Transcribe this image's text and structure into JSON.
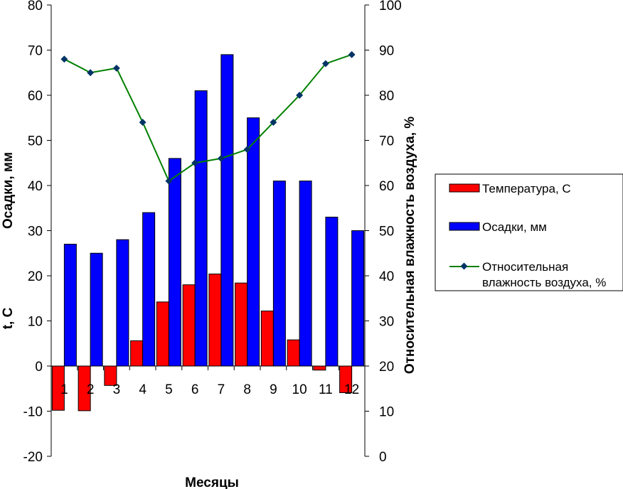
{
  "chart_data": {
    "type": "bar",
    "categories": [
      "1",
      "2",
      "3",
      "4",
      "5",
      "6",
      "7",
      "8",
      "9",
      "10",
      "11",
      "12"
    ],
    "series": [
      {
        "name": "Температура, С",
        "kind": "bar",
        "axis": "left",
        "color": "#ff0000",
        "values": [
          -9.8,
          -9.9,
          -4.3,
          5.6,
          14.2,
          18.0,
          20.4,
          18.4,
          12.2,
          5.8,
          -0.9,
          -5.9
        ]
      },
      {
        "name": "Осадки, мм",
        "kind": "bar",
        "axis": "left",
        "color": "#0000ff",
        "values": [
          27,
          25,
          28,
          34,
          46,
          61,
          69,
          55,
          41,
          41,
          33,
          30
        ]
      },
      {
        "name": "Относительная влажность воздуха, %",
        "kind": "line",
        "axis": "right",
        "color": "#008000",
        "marker_color": "#003366",
        "values": [
          88,
          85,
          86,
          74,
          61,
          65,
          66,
          68,
          74,
          80,
          87,
          89
        ]
      }
    ],
    "left_axis": {
      "ylim": [
        -20,
        80
      ],
      "ticks": [
        "80",
        "70",
        "60",
        "50",
        "40",
        "30",
        "20",
        "10",
        "0",
        "-10",
        "-20"
      ],
      "label_top": "Осадки, мм",
      "label_bottom": "t, С"
    },
    "right_axis": {
      "ylim": [
        0,
        100
      ],
      "ticks": [
        "100",
        "90",
        "80",
        "70",
        "60",
        "50",
        "40",
        "30",
        "20",
        "10",
        "0"
      ],
      "label": "Относительная влажность воздуха, %"
    },
    "xlabel": "Месяцы",
    "legend": {
      "placement": "right",
      "items": [
        {
          "label": "Температура, С"
        },
        {
          "label": "Осадки, мм"
        },
        {
          "label_line1": "Относительная",
          "label_line2": "влажность воздуха, %"
        }
      ]
    },
    "grid": false
  }
}
